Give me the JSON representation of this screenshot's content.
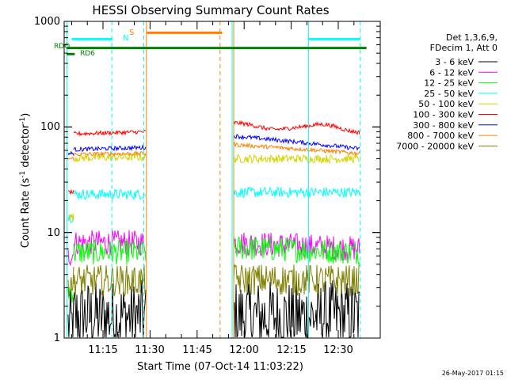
{
  "chart_data": {
    "type": "line",
    "title": "HESSI Observing Summary Count Rates",
    "xlabel": "Start Time (07-Oct-14 11:03:22)",
    "ylabel": "Count Rate (s",
    "ylabel_sup": "-1",
    "ylabel_mid": " detector",
    "ylabel_sup2": "-1",
    "ylabel_end": ")",
    "y_scale": "log",
    "ylim": [
      1,
      1000
    ],
    "xlim": [
      "11:03:22",
      "12:39:00"
    ],
    "x_ticks": [
      "11:15",
      "11:30",
      "11:45",
      "12:00",
      "12:15",
      "12:30"
    ],
    "y_ticks": [
      "1",
      "10",
      "100",
      "1000"
    ],
    "timestamp": "26-May-2017 01:15",
    "legend": {
      "header1": "Det 1,3,6,9,",
      "header2": "FDecim 1, Att 0",
      "entries": [
        {
          "label": "3 - 6 keV",
          "color": "#000000"
        },
        {
          "label": "6 - 12 keV",
          "color": "#ff00ff"
        },
        {
          "label": "12 - 25 keV",
          "color": "#00ff00"
        },
        {
          "label": "25 - 50 keV",
          "color": "#00ffff"
        },
        {
          "label": "50 - 100 keV",
          "color": "#d4d400"
        },
        {
          "label": "100 - 300 keV",
          "color": "#ff0000"
        },
        {
          "label": "300 - 800 keV",
          "color": "#0000ff"
        },
        {
          "label": "800 - 7000 keV",
          "color": "#ff8000"
        },
        {
          "label": "7000 - 20000 keV",
          "color": "#808000"
        }
      ]
    },
    "flag_labels": {
      "rdo": "RDO",
      "rd6": "RD6",
      "n": "N",
      "s": "S"
    },
    "flags": [
      {
        "name": "RDO",
        "color": "#008000",
        "y": 560,
        "x0": "11:03:22",
        "x1": "12:39:00"
      },
      {
        "name": "RD6",
        "color": "#008000",
        "y": 490,
        "x0": "11:03:22",
        "x1": "11:06:00"
      },
      {
        "name": "N",
        "color": "#00ffff",
        "y": 680,
        "x0": "11:05:00",
        "x1": "11:18:00"
      },
      {
        "name": "N",
        "color": "#00ffff",
        "y": 680,
        "x0": "12:20:30",
        "x1": "12:37:00"
      },
      {
        "name": "S",
        "color": "#ff8000",
        "y": 780,
        "x0": "11:29:00",
        "x1": "11:53:00"
      }
    ],
    "segments": [
      {
        "x0": "11:05:40",
        "x1": "11:28:50"
      },
      {
        "x0": "11:56:40",
        "x1": "12:37:00"
      }
    ],
    "vlines": [
      {
        "x": "11:03:30",
        "color": "#00ffff",
        "dash": false
      },
      {
        "x": "11:17:50",
        "color": "#00ffff",
        "dash": true
      },
      {
        "x": "11:28:00",
        "color": "#00ffff",
        "dash": true
      },
      {
        "x": "11:28:50",
        "color": "#ff8000",
        "dash": false
      },
      {
        "x": "11:52:20",
        "color": "#ff8000",
        "dash": true
      },
      {
        "x": "11:56:10",
        "color": "#00ffff",
        "dash": false
      },
      {
        "x": "11:56:40",
        "color": "#ff8000",
        "dash": false
      },
      {
        "x": "12:20:30",
        "color": "#00ffff",
        "dash": false
      },
      {
        "x": "12:37:00",
        "color": "#00ffff",
        "dash": true
      }
    ],
    "series": [
      {
        "name": "3 - 6 keV",
        "color": "#000000",
        "pre": 1.3,
        "seg1": [
          1.6,
          1.6
        ],
        "seg2": [
          1.6,
          1.6
        ],
        "noise": 0.35
      },
      {
        "name": "6 - 12 keV",
        "color": "#ff00ff",
        "pre": 6.2,
        "seg1": [
          8.0,
          8.0
        ],
        "seg2": [
          8.0,
          7.0
        ],
        "noise": 0.12
      },
      {
        "name": "12 - 25 keV",
        "color": "#00ff00",
        "pre": 2.8,
        "seg1": [
          6.5,
          6.5
        ],
        "seg2": [
          7.2,
          6.5
        ],
        "noise": 0.12
      },
      {
        "name": "25 - 50 keV",
        "color": "#00ffff",
        "pre": 14,
        "seg1": [
          23,
          23
        ],
        "seg2": [
          24,
          24
        ],
        "noise": 0.05
      },
      {
        "name": "50 - 100 keV",
        "color": "#d4d400",
        "pre": 14,
        "seg1": [
          51,
          52
        ],
        "seg2": [
          50,
          50
        ],
        "noise": 0.04
      },
      {
        "name": "100 - 300 keV",
        "color": "#ff0000",
        "pre": 24,
        "seg1": [
          86,
          90
        ],
        "seg2": [
          110,
          88
        ],
        "noise": 0.02
      },
      {
        "name": "300 - 800 keV",
        "color": "#0000ff",
        "pre": 56,
        "seg1": [
          61,
          64
        ],
        "seg2": [
          82,
          62
        ],
        "noise": 0.02
      },
      {
        "name": "800 - 7000 keV",
        "color": "#ff8000",
        "pre": 50,
        "seg1": [
          55,
          56
        ],
        "seg2": [
          68,
          56
        ],
        "noise": 0.02
      },
      {
        "name": "7000 - 20000 keV",
        "color": "#808000",
        "pre": 3.5,
        "seg1": [
          3.5,
          3.5
        ],
        "seg2": [
          3.6,
          3.5
        ],
        "noise": 0.15
      }
    ]
  }
}
